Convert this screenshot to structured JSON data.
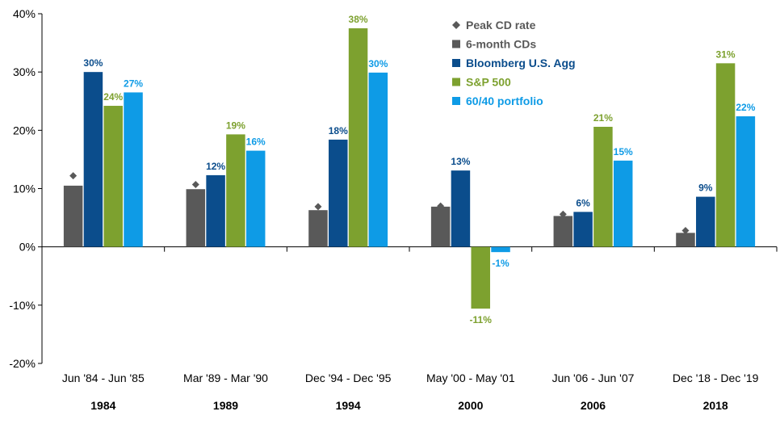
{
  "chart_data": {
    "type": "bar",
    "ylim": [
      -20,
      40
    ],
    "y_ticks": [
      -20,
      -10,
      0,
      10,
      20,
      30,
      40
    ],
    "y_tick_labels": [
      "-20%",
      "-10%",
      "0%",
      "10%",
      "20%",
      "30%",
      "40%"
    ],
    "grid": false,
    "legend_position": "top-right",
    "categories": [
      "Jun '84 - Jun '85",
      "Mar '89 - Mar '90",
      "Dec '94 - Dec '95",
      "May '00 - May '01",
      "Jun '06 - Jun '07",
      "Dec '18 - Dec '19"
    ],
    "category_years": [
      "1984",
      "1989",
      "1994",
      "2000",
      "2006",
      "2018"
    ],
    "marker_series": {
      "name": "Peak CD rate",
      "color": "#595959",
      "values": [
        12.2,
        10.7,
        6.9,
        7.0,
        5.6,
        2.8
      ]
    },
    "series": [
      {
        "name": "6-month CDs",
        "color": "#595959",
        "label_color": "#595959",
        "values": [
          10.5,
          9.9,
          6.3,
          6.9,
          5.3,
          2.4
        ],
        "labels": [
          "",
          "",
          "",
          "",
          "",
          ""
        ]
      },
      {
        "name": "Bloomberg U.S. Agg",
        "color": "#0B4D8C",
        "label_color": "#0B4D8C",
        "values": [
          30.0,
          12.3,
          18.4,
          13.1,
          6.0,
          8.6
        ],
        "labels": [
          "30%",
          "12%",
          "18%",
          "13%",
          "6%",
          "9%"
        ]
      },
      {
        "name": "S&P 500",
        "color": "#7DA12F",
        "label_color": "#7DA12F",
        "values": [
          24.2,
          19.3,
          37.5,
          -10.6,
          20.6,
          31.5
        ],
        "labels": [
          "24%",
          "19%",
          "38%",
          "-11%",
          "21%",
          "31%"
        ]
      },
      {
        "name": "60/40 portfolio",
        "color": "#0E9BE6",
        "label_color": "#0E9BE6",
        "values": [
          26.5,
          16.5,
          29.9,
          -0.9,
          14.8,
          22.4
        ],
        "labels": [
          "27%",
          "16%",
          "30%",
          "-1%",
          "15%",
          "22%"
        ]
      }
    ]
  }
}
